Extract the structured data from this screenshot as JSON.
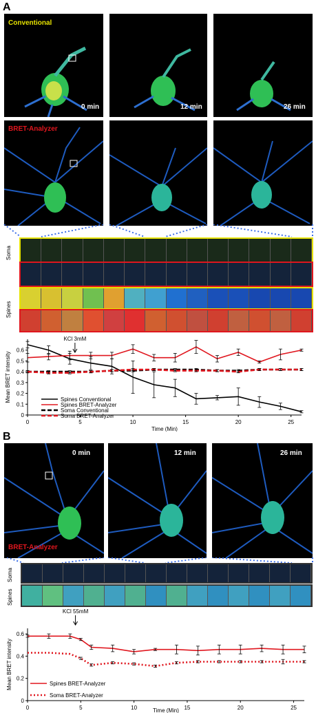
{
  "panel_a": {
    "letter": "A",
    "row1_label": "Conventional",
    "row2_label": "BRET-Analyzer",
    "times": [
      "0 min",
      "12 min",
      "26 min"
    ],
    "strip_labels": [
      "Soma",
      "Spines"
    ],
    "colors": {
      "conventional": "#e6e200",
      "bret": "#e0161e",
      "marker": "#3a6ee8"
    }
  },
  "panel_b": {
    "letter": "B",
    "row_label": "BRET-Analyzer",
    "times": [
      "0 min",
      "12 min",
      "26 min"
    ],
    "strip_labels": [
      "Soma",
      "Spines"
    ]
  },
  "chart_data": [
    {
      "type": "line",
      "ylabel": "Mean BRET intensity",
      "xlabel": "Time (Min)",
      "ylim": [
        0,
        0.7
      ],
      "xlim": [
        0,
        26
      ],
      "yticks": [
        "0",
        "0.1",
        "0.2",
        "0.3",
        "0.4",
        "0.5",
        "0.6"
      ],
      "xticks": [
        "0",
        "5",
        "10",
        "15",
        "20",
        "25"
      ],
      "annotation": {
        "text": "KCl 3mM",
        "x": 4.5
      },
      "legend_position": "bottom-left",
      "series": [
        {
          "name": "Spines Conventional",
          "style": "solid",
          "color": "#000000",
          "x": [
            0,
            2,
            4,
            6,
            8,
            10,
            12,
            14,
            16,
            18,
            20,
            22,
            24,
            26
          ],
          "y": [
            0.65,
            0.6,
            0.52,
            0.48,
            0.45,
            0.35,
            0.28,
            0.25,
            0.15,
            0.16,
            0.17,
            0.12,
            0.08,
            0.03
          ],
          "err": [
            0.03,
            0.04,
            0.05,
            0.06,
            0.07,
            0.15,
            0.12,
            0.08,
            0.05,
            0.02,
            0.08,
            0.05,
            0.03,
            0.01
          ]
        },
        {
          "name": "Spines BRET-Analyzer",
          "style": "solid",
          "color": "#e0161e",
          "x": [
            0,
            2,
            4,
            6,
            8,
            10,
            12,
            14,
            16,
            18,
            20,
            22,
            24,
            26
          ],
          "y": [
            0.53,
            0.54,
            0.55,
            0.55,
            0.55,
            0.61,
            0.53,
            0.53,
            0.63,
            0.52,
            0.58,
            0.49,
            0.56,
            0.6
          ],
          "err": [
            0.04,
            0.03,
            0.04,
            0.03,
            0.03,
            0.04,
            0.03,
            0.04,
            0.06,
            0.03,
            0.03,
            0.01,
            0.05,
            0.01
          ]
        },
        {
          "name": "Soma Conventional",
          "style": "dashed",
          "color": "#000000",
          "x": [
            0,
            2,
            4,
            6,
            8,
            10,
            12,
            14,
            16,
            18,
            20,
            22,
            24,
            26
          ],
          "y": [
            0.4,
            0.4,
            0.4,
            0.4,
            0.41,
            0.41,
            0.42,
            0.42,
            0.42,
            0.41,
            0.41,
            0.42,
            0.42,
            0.42
          ],
          "err": [
            0.01,
            0.01,
            0.01,
            0.01,
            0.01,
            0.01,
            0.01,
            0.01,
            0.01,
            0.01,
            0.01,
            0.01,
            0.01,
            0.01
          ]
        },
        {
          "name": "Soma BRET-Analyzer",
          "style": "dashed",
          "color": "#e0161e",
          "x": [
            0,
            2,
            4,
            6,
            8,
            10,
            12,
            14,
            16,
            18,
            20,
            22,
            24,
            26
          ],
          "y": [
            0.4,
            0.39,
            0.39,
            0.4,
            0.41,
            0.42,
            0.42,
            0.41,
            0.41,
            0.41,
            0.4,
            0.42,
            0.42,
            0.42
          ],
          "err": [
            0.01,
            0.01,
            0.01,
            0.01,
            0.01,
            0.01,
            0.01,
            0.01,
            0.01,
            0.01,
            0.01,
            0.01,
            0.01,
            0.01
          ]
        }
      ]
    },
    {
      "type": "line",
      "ylabel": "Mean BRET intensity",
      "xlabel": "Time (Min)",
      "ylim": [
        0,
        0.65
      ],
      "xlim": [
        0,
        26
      ],
      "yticks": [
        "0",
        "0.2",
        "0.4",
        "0.6"
      ],
      "xticks": [
        "0",
        "5",
        "10",
        "15",
        "20",
        "25"
      ],
      "annotation": {
        "text": "KCl 55mM",
        "x": 4.5
      },
      "legend_position": "bottom-left",
      "series": [
        {
          "name": "Spines BRET-Analyzer",
          "style": "solid",
          "color": "#e0161e",
          "x": [
            0,
            2,
            4,
            5,
            6,
            8,
            10,
            12,
            14,
            16,
            18,
            20,
            22,
            24,
            26
          ],
          "y": [
            0.58,
            0.58,
            0.58,
            0.55,
            0.48,
            0.47,
            0.44,
            0.46,
            0.46,
            0.45,
            0.46,
            0.46,
            0.47,
            0.46,
            0.46
          ],
          "err": [
            0.01,
            0.02,
            0.02,
            0.01,
            0.02,
            0.03,
            0.02,
            0.01,
            0.04,
            0.04,
            0.04,
            0.04,
            0.03,
            0.04,
            0.03
          ]
        },
        {
          "name": "Soma BRET-Analyzer",
          "style": "dotted",
          "color": "#e0161e",
          "x": [
            0,
            2,
            4,
            5,
            6,
            8,
            10,
            12,
            14,
            16,
            18,
            20,
            22,
            24,
            26
          ],
          "y": [
            0.43,
            0.43,
            0.42,
            0.38,
            0.32,
            0.34,
            0.33,
            0.31,
            0.34,
            0.35,
            0.35,
            0.35,
            0.35,
            0.35,
            0.35
          ],
          "err": [
            0.0,
            0.0,
            0.0,
            0.01,
            0.01,
            0.01,
            0.01,
            0.01,
            0.01,
            0.01,
            0.01,
            0.01,
            0.01,
            0.02,
            0.01
          ]
        }
      ]
    }
  ]
}
